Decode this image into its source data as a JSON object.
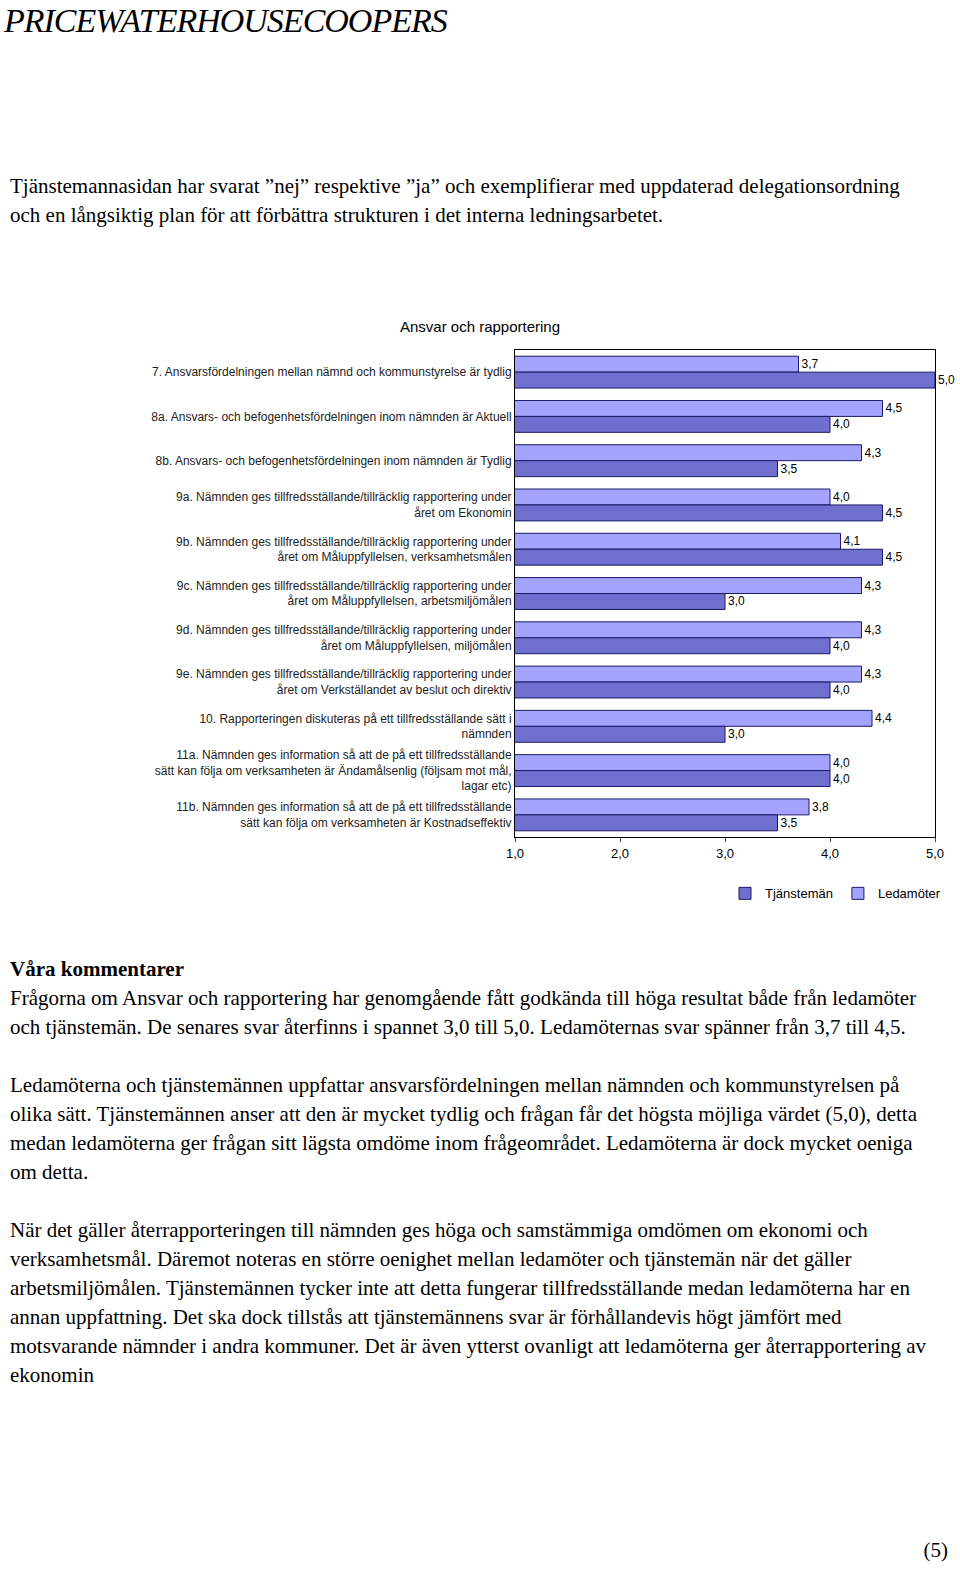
{
  "header": "PRICEWATERHOUSECOOPERS",
  "intro": "Tjänstemannasidan har svarat ”nej” respektive ”ja” och exemplifierar med uppdaterad delegationsordning och en långsiktig plan för att förbättra strukturen i det interna ledningsarbetet.",
  "chart_data": {
    "type": "bar",
    "orientation": "horizontal",
    "title": "Ansvar och rapportering",
    "categories": [
      "7. Ansvarsfördelningen mellan nämnd och kommunstyrelse är tydlig",
      "8a. Ansvars- och befogenhetsfördelningen inom nämnden är Aktuell",
      "8b. Ansvars- och befogenhetsfördelningen inom nämnden är Tydlig",
      "9a. Nämnden ges tillfredsställande/tillräcklig rapportering under året om Ekonomin",
      "9b. Nämnden ges tillfredsställande/tillräcklig rapportering under året om Måluppfyllelsen, verksamhetsmålen",
      "9c. Nämnden ges tillfredsställande/tillräcklig rapportering under året om Måluppfyllelsen, arbetsmiljömålen",
      "9d. Nämnden ges tillfredsställande/tillräcklig rapportering under året om Måluppfyllelsen, miljömålen",
      "9e. Nämnden ges tillfredsställande/tillräcklig rapportering under året om Verkställandet av beslut och direktiv",
      "10. Rapporteringen diskuteras på ett tillfredsställande sätt i nämnden",
      "11a. Nämnden ges information så att de på ett tillfredsställande sätt kan följa om verksamheten är Ändamålsenlig (följsam mot mål, lagar etc)",
      "11b. Nämnden ges information så att de på ett tillfredsställande sätt kan följa om verksamheten är Kostnadseffektiv"
    ],
    "series": [
      {
        "name": "Tjänstemän",
        "color": "#6f6fcf",
        "values": [
          5.0,
          4.0,
          3.5,
          4.5,
          4.5,
          3.0,
          4.0,
          4.0,
          3.0,
          4.0,
          3.5
        ],
        "value_labels": [
          "5,0",
          "4,0",
          "3,5",
          "4,5",
          "4,5",
          "3,0",
          "4,0",
          "4,0",
          "3,0",
          "4,0",
          "3,5"
        ]
      },
      {
        "name": "Ledamöter",
        "color": "#a4a4ff",
        "values": [
          3.7,
          4.5,
          4.3,
          4.0,
          4.1,
          4.3,
          4.3,
          4.3,
          4.4,
          4.0,
          3.8
        ],
        "value_labels": [
          "3,7",
          "4,5",
          "4,3",
          "4,0",
          "4,1",
          "4,3",
          "4,3",
          "4,3",
          "4,4",
          "4,0",
          "3,8"
        ]
      }
    ],
    "xlim": [
      1,
      5
    ],
    "xticks": [
      {
        "value": 1,
        "label": "1,0"
      },
      {
        "value": 2,
        "label": "2,0"
      },
      {
        "value": 3,
        "label": "3,0"
      },
      {
        "value": 4,
        "label": "4,0"
      },
      {
        "value": 5,
        "label": "5,0"
      }
    ],
    "data_labels": true,
    "grid": false,
    "legend": "bottom"
  },
  "comments": {
    "heading": "Våra kommentarer",
    "paragraphs": [
      "Frågorna om Ansvar och rapportering har genomgående fått godkända till höga resultat både från ledamöter och tjänstemän. De senares svar återfinns i spannet 3,0 till 5,0. Ledamöternas svar spänner från 3,7 till 4,5.",
      "Ledamöterna och tjänstemännen uppfattar ansvarsfördelningen mellan nämnden och kommunstyrelsen på olika sätt. Tjänstemännen anser att den är mycket tydlig och frågan får det högsta möjliga värdet (5,0), detta medan ledamöterna ger frågan sitt lägsta omdöme inom frågeområdet. Ledamöterna är dock mycket oeniga om detta.",
      "När det gäller återrapporteringen till nämnden ges höga och samstämmiga omdömen om ekonomi och verksamhetsmål. Däremot noteras en större oenighet mellan ledamöter och tjänstemän när det gäller arbetsmiljömålen. Tjänstemännen tycker inte att detta fungerar tillfredsställande medan ledamöterna har en annan uppfattning. Det ska dock tillstås att tjänstemännens svar är förhållandevis högt jämfört med motsvarande nämnder i andra kommuner. Det är även ytterst ovanligt att ledamöterna ger återrapportering av ekonomin"
    ]
  },
  "page_number": "(5)"
}
